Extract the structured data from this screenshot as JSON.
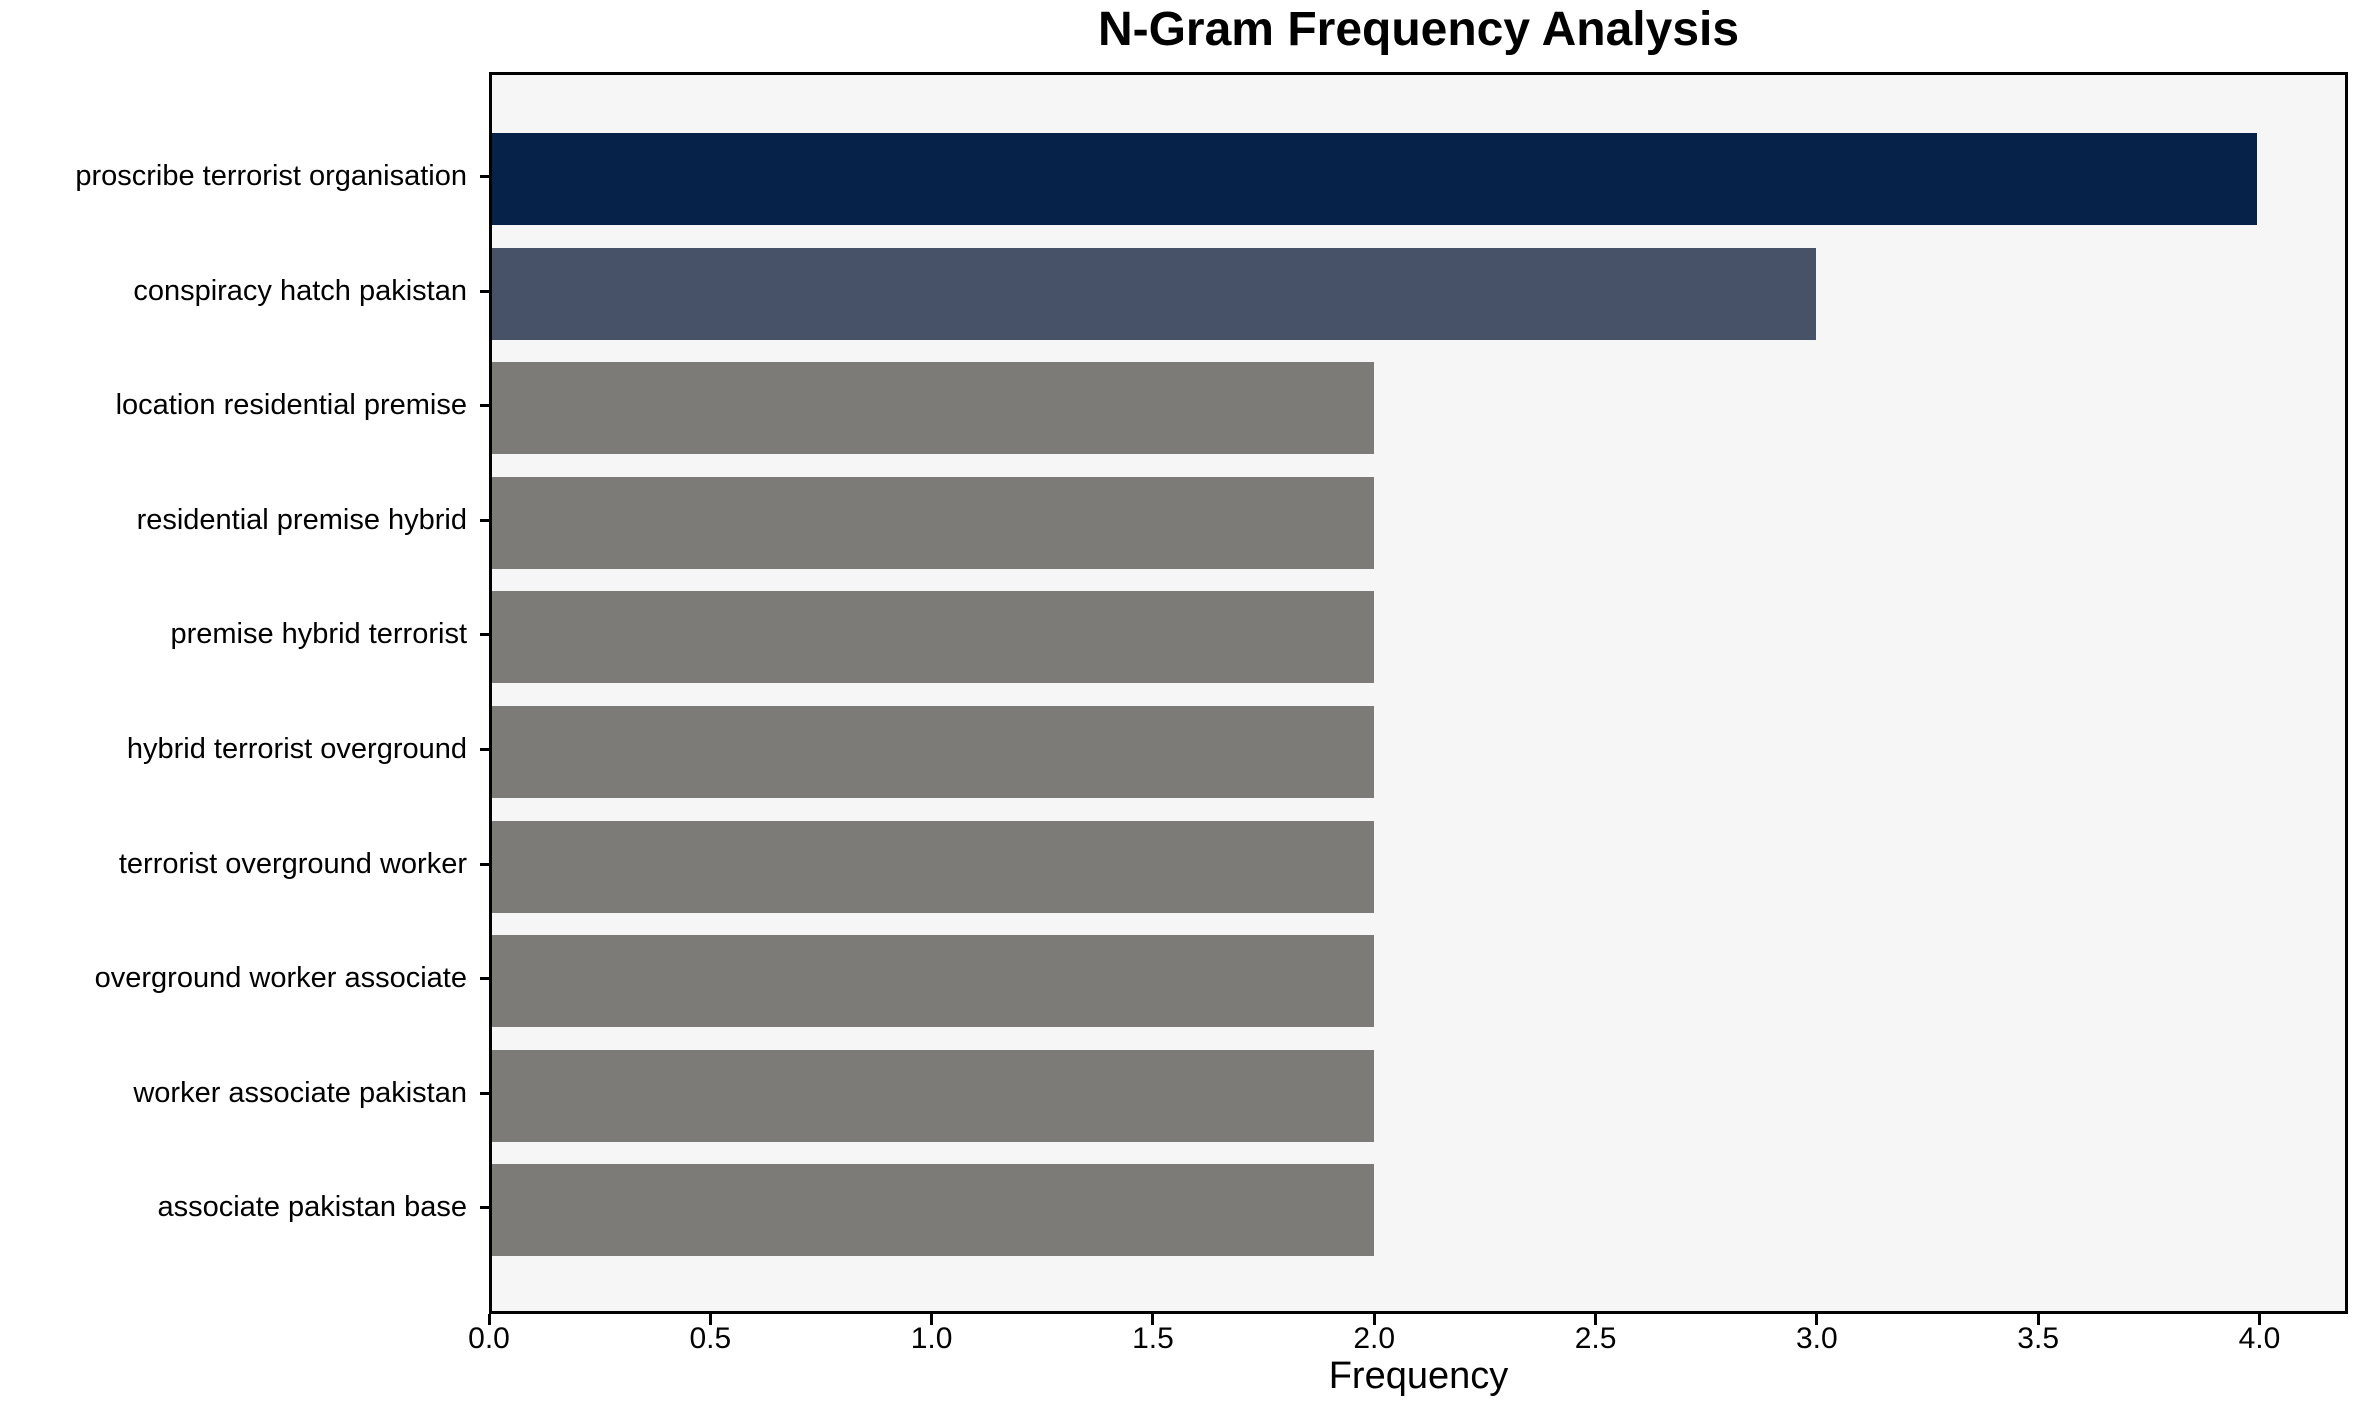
{
  "chart_data": {
    "type": "bar",
    "orientation": "horizontal",
    "title": "N-Gram Frequency Analysis",
    "xlabel": "Frequency",
    "ylabel": "",
    "categories": [
      "proscribe terrorist organisation",
      "conspiracy hatch pakistan",
      "location residential premise",
      "residential premise hybrid",
      "premise hybrid terrorist",
      "hybrid terrorist overground",
      "terrorist overground worker",
      "overground worker associate",
      "worker associate pakistan",
      "associate pakistan base"
    ],
    "values": [
      4,
      3,
      2,
      2,
      2,
      2,
      2,
      2,
      2,
      2
    ],
    "bar_colors": [
      "#062248",
      "#475269",
      "#7c7b78",
      "#7c7b78",
      "#7c7b78",
      "#7c7b78",
      "#7c7b78",
      "#7c7b78",
      "#7c7b78",
      "#7c7b78"
    ],
    "xlim": [
      0,
      4.2
    ],
    "xticks": [
      "0.0",
      "0.5",
      "1.0",
      "1.5",
      "2.0",
      "2.5",
      "3.0",
      "3.5",
      "4.0"
    ],
    "xtick_values": [
      0.0,
      0.5,
      1.0,
      1.5,
      2.0,
      2.5,
      3.0,
      3.5,
      4.0
    ],
    "grid": false,
    "legend": null,
    "colors": {
      "plot_bg": "#f7f6f6",
      "figure_bg": "#ffffff",
      "spine": "#000000",
      "text": "#000000"
    }
  }
}
